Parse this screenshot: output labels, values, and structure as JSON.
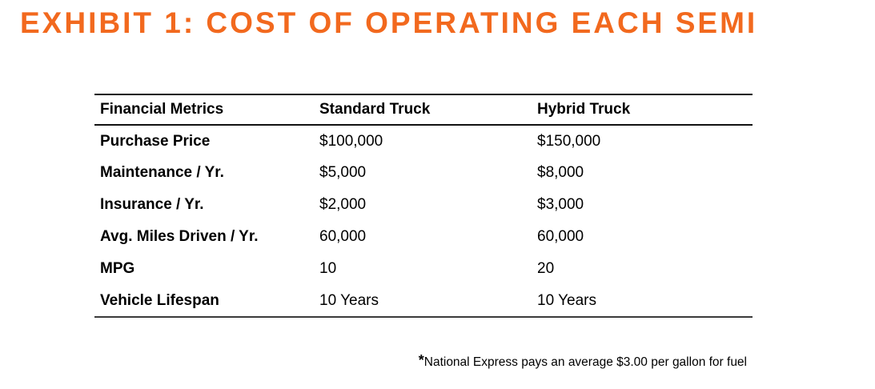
{
  "title": "EXHIBIT 1: COST OF OPERATING EACH SEMI",
  "colors": {
    "title": "#F2691E",
    "text": "#000000",
    "rule": "#111111"
  },
  "table": {
    "columns": [
      "Financial Metrics",
      "Standard Truck",
      "Hybrid Truck"
    ],
    "rows": [
      {
        "metric": "Purchase Price",
        "standard": "$100,000",
        "hybrid": "$150,000"
      },
      {
        "metric": "Maintenance / Yr.",
        "standard": "$5,000",
        "hybrid": "$8,000"
      },
      {
        "metric": "Insurance / Yr.",
        "standard": "$2,000",
        "hybrid": "$3,000"
      },
      {
        "metric": "Avg. Miles Driven / Yr.",
        "standard": "60,000",
        "hybrid": "60,000"
      },
      {
        "metric": "MPG",
        "standard": "10",
        "hybrid": "20"
      },
      {
        "metric": "Vehicle Lifespan",
        "standard": "10 Years",
        "hybrid": "10 Years"
      }
    ]
  },
  "footnote": {
    "marker": "*",
    "text": "National Express pays an average $3.00 per gallon for fuel"
  }
}
